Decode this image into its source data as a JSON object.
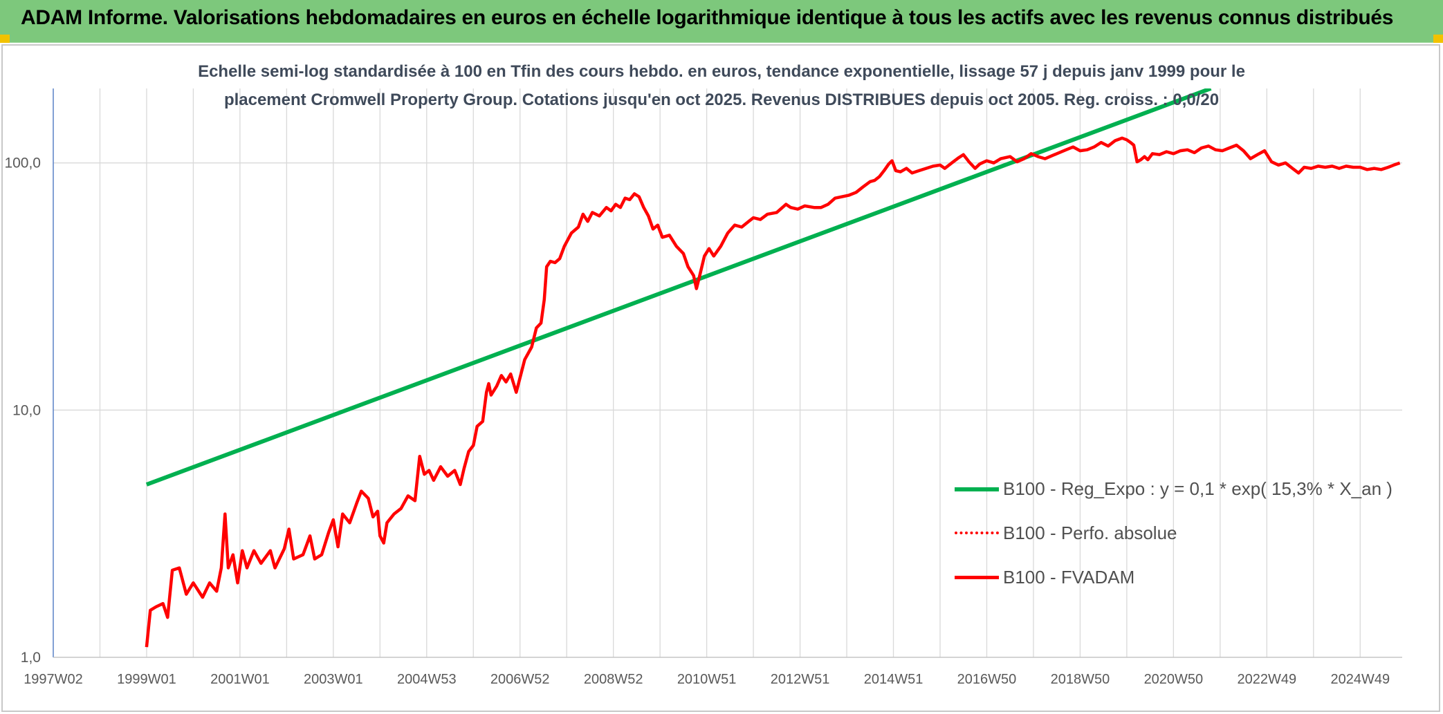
{
  "header": {
    "title": "ADAM Informe. Valorisations hebdomadaires en euros en échelle logarithmique identique à tous les actifs avec les revenus connus distribués"
  },
  "colors": {
    "header_bg": "#7dc87c",
    "regression_line": "#00b050",
    "fvadam_line": "#ff0000",
    "perfo_line": "#ff0000",
    "gridline": "#d9d9d9",
    "axis_text": "#595959",
    "corner_marker": "#f2c200"
  },
  "chart_data": {
    "type": "line",
    "title_lines": [
      "Echelle semi-log standardisée à 100 en Tfin des cours hebdo. en euros, tendance exponentielle, lissage 57 j depuis janv 1999 pour le",
      "placement Cromwell Property Group. Cotations jusqu'en oct 2025. Revenus DISTRIBUES depuis oct 2005. Reg. croiss. : 0,0/20"
    ],
    "y_scale": "log",
    "ylim": [
      1,
      200
    ],
    "y_ticks": [
      {
        "value": 1,
        "label": "1,0"
      },
      {
        "value": 10,
        "label": "10,0"
      },
      {
        "value": 100,
        "label": "100,0"
      }
    ],
    "xlim": [
      1997.0,
      2025.9
    ],
    "x_ticks": [
      {
        "value": 1997.0,
        "label": "1997W02"
      },
      {
        "value": 1999.0,
        "label": "1999W01"
      },
      {
        "value": 2001.0,
        "label": "2001W01"
      },
      {
        "value": 2003.0,
        "label": "2003W01"
      },
      {
        "value": 2005.0,
        "label": "2004W53"
      },
      {
        "value": 2007.0,
        "label": "2006W52"
      },
      {
        "value": 2009.0,
        "label": "2008W52"
      },
      {
        "value": 2011.0,
        "label": "2010W51"
      },
      {
        "value": 2013.0,
        "label": "2012W51"
      },
      {
        "value": 2015.0,
        "label": "2014W51"
      },
      {
        "value": 2017.0,
        "label": "2016W50"
      },
      {
        "value": 2019.0,
        "label": "2018W50"
      },
      {
        "value": 2021.0,
        "label": "2020W50"
      },
      {
        "value": 2023.0,
        "label": "2022W49"
      },
      {
        "value": 2025.0,
        "label": "2024W49"
      }
    ],
    "legend_position": "bottom-right",
    "series": [
      {
        "name": "B100 - Reg_Expo : y = 0,1 * exp( 15,3% *  X_an )",
        "style": "solid-thick",
        "points": [
          [
            1999.0,
            5.0
          ],
          [
            2021.8,
            200.0
          ]
        ]
      },
      {
        "name": "B100 - Perfo. absolue",
        "style": "dotted",
        "points": []
      },
      {
        "name": "B100 - FVADAM",
        "style": "solid",
        "points": [
          [
            1999.0,
            1.1
          ],
          [
            1999.08,
            1.55
          ],
          [
            1999.2,
            1.6
          ],
          [
            1999.35,
            1.65
          ],
          [
            1999.45,
            1.45
          ],
          [
            1999.55,
            2.25
          ],
          [
            1999.7,
            2.3
          ],
          [
            1999.85,
            1.8
          ],
          [
            2000.0,
            2.0
          ],
          [
            2000.2,
            1.75
          ],
          [
            2000.35,
            2.0
          ],
          [
            2000.5,
            1.85
          ],
          [
            2000.6,
            2.3
          ],
          [
            2000.68,
            3.8
          ],
          [
            2000.75,
            2.3
          ],
          [
            2000.85,
            2.6
          ],
          [
            2000.95,
            2.0
          ],
          [
            2001.05,
            2.7
          ],
          [
            2001.15,
            2.3
          ],
          [
            2001.3,
            2.7
          ],
          [
            2001.45,
            2.4
          ],
          [
            2001.65,
            2.7
          ],
          [
            2001.75,
            2.3
          ],
          [
            2001.95,
            2.75
          ],
          [
            2002.05,
            3.3
          ],
          [
            2002.15,
            2.5
          ],
          [
            2002.35,
            2.6
          ],
          [
            2002.5,
            3.1
          ],
          [
            2002.6,
            2.5
          ],
          [
            2002.75,
            2.6
          ],
          [
            2002.9,
            3.2
          ],
          [
            2003.0,
            3.6
          ],
          [
            2003.1,
            2.8
          ],
          [
            2003.2,
            3.8
          ],
          [
            2003.35,
            3.5
          ],
          [
            2003.5,
            4.2
          ],
          [
            2003.6,
            4.7
          ],
          [
            2003.75,
            4.4
          ],
          [
            2003.85,
            3.7
          ],
          [
            2003.95,
            3.9
          ],
          [
            2004.0,
            3.1
          ],
          [
            2004.08,
            2.9
          ],
          [
            2004.15,
            3.5
          ],
          [
            2004.3,
            3.8
          ],
          [
            2004.45,
            4.0
          ],
          [
            2004.6,
            4.5
          ],
          [
            2004.75,
            4.3
          ],
          [
            2004.85,
            6.5
          ],
          [
            2004.95,
            5.5
          ],
          [
            2005.05,
            5.7
          ],
          [
            2005.15,
            5.2
          ],
          [
            2005.3,
            5.9
          ],
          [
            2005.45,
            5.4
          ],
          [
            2005.6,
            5.7
          ],
          [
            2005.72,
            5.0
          ],
          [
            2005.8,
            5.8
          ],
          [
            2005.9,
            6.8
          ],
          [
            2006.0,
            7.2
          ],
          [
            2006.08,
            8.6
          ],
          [
            2006.2,
            9.0
          ],
          [
            2006.28,
            11.8
          ],
          [
            2006.33,
            12.8
          ],
          [
            2006.38,
            11.5
          ],
          [
            2006.5,
            12.5
          ],
          [
            2006.6,
            13.8
          ],
          [
            2006.7,
            13.0
          ],
          [
            2006.8,
            14.0
          ],
          [
            2006.92,
            11.8
          ],
          [
            2007.0,
            13.5
          ],
          [
            2007.1,
            16.0
          ],
          [
            2007.25,
            18.0
          ],
          [
            2007.35,
            21.5
          ],
          [
            2007.45,
            22.5
          ],
          [
            2007.52,
            28.0
          ],
          [
            2007.57,
            38.0
          ],
          [
            2007.65,
            40.0
          ],
          [
            2007.75,
            39.5
          ],
          [
            2007.85,
            41.0
          ],
          [
            2007.95,
            46.0
          ],
          [
            2008.1,
            52.0
          ],
          [
            2008.25,
            55.0
          ],
          [
            2008.35,
            62.0
          ],
          [
            2008.45,
            58.0
          ],
          [
            2008.55,
            63.0
          ],
          [
            2008.7,
            61.0
          ],
          [
            2008.85,
            66.0
          ],
          [
            2008.95,
            64.0
          ],
          [
            2009.05,
            68.0
          ],
          [
            2009.15,
            66.0
          ],
          [
            2009.25,
            72.0
          ],
          [
            2009.35,
            71.0
          ],
          [
            2009.45,
            75.0
          ],
          [
            2009.55,
            73.0
          ],
          [
            2009.65,
            66.0
          ],
          [
            2009.75,
            61.0
          ],
          [
            2009.85,
            54.0
          ],
          [
            2009.95,
            56.0
          ],
          [
            2010.05,
            50.0
          ],
          [
            2010.2,
            51.0
          ],
          [
            2010.35,
            46.0
          ],
          [
            2010.5,
            43.0
          ],
          [
            2010.6,
            38.0
          ],
          [
            2010.72,
            35.0
          ],
          [
            2010.78,
            31.0
          ],
          [
            2010.85,
            35.0
          ],
          [
            2010.95,
            42.0
          ],
          [
            2011.05,
            45.0
          ],
          [
            2011.15,
            42.0
          ],
          [
            2011.3,
            46.0
          ],
          [
            2011.45,
            52.0
          ],
          [
            2011.6,
            56.0
          ],
          [
            2011.75,
            55.0
          ],
          [
            2011.9,
            58.0
          ],
          [
            2012.0,
            60.0
          ],
          [
            2012.15,
            59.0
          ],
          [
            2012.3,
            62.0
          ],
          [
            2012.5,
            63.0
          ],
          [
            2012.7,
            68.0
          ],
          [
            2012.8,
            66.0
          ],
          [
            2012.95,
            65.0
          ],
          [
            2013.1,
            67.0
          ],
          [
            2013.3,
            66.0
          ],
          [
            2013.45,
            66.0
          ],
          [
            2013.6,
            68.0
          ],
          [
            2013.75,
            72.0
          ],
          [
            2013.9,
            73.0
          ],
          [
            2014.05,
            74.0
          ],
          [
            2014.2,
            76.0
          ],
          [
            2014.35,
            80.0
          ],
          [
            2014.5,
            84.0
          ],
          [
            2014.6,
            85.0
          ],
          [
            2014.7,
            88.0
          ],
          [
            2014.8,
            93.0
          ],
          [
            2014.9,
            99.0
          ],
          [
            2014.97,
            102.0
          ],
          [
            2015.05,
            93.0
          ],
          [
            2015.15,
            92.0
          ],
          [
            2015.28,
            95.0
          ],
          [
            2015.4,
            91.0
          ],
          [
            2015.55,
            93.0
          ],
          [
            2015.7,
            95.0
          ],
          [
            2015.85,
            97.0
          ],
          [
            2016.0,
            98.0
          ],
          [
            2016.1,
            95.0
          ],
          [
            2016.25,
            100.0
          ],
          [
            2016.4,
            105.0
          ],
          [
            2016.5,
            108.0
          ],
          [
            2016.62,
            101.0
          ],
          [
            2016.75,
            95.0
          ],
          [
            2016.85,
            99.0
          ],
          [
            2017.0,
            102.0
          ],
          [
            2017.15,
            100.0
          ],
          [
            2017.3,
            104.0
          ],
          [
            2017.5,
            106.0
          ],
          [
            2017.65,
            101.0
          ],
          [
            2017.8,
            104.0
          ],
          [
            2017.95,
            109.0
          ],
          [
            2018.1,
            106.0
          ],
          [
            2018.25,
            104.0
          ],
          [
            2018.4,
            107.0
          ],
          [
            2018.55,
            110.0
          ],
          [
            2018.7,
            113.0
          ],
          [
            2018.85,
            116.0
          ],
          [
            2019.0,
            112.0
          ],
          [
            2019.15,
            113.0
          ],
          [
            2019.3,
            116.0
          ],
          [
            2019.45,
            121.0
          ],
          [
            2019.6,
            117.0
          ],
          [
            2019.75,
            123.0
          ],
          [
            2019.9,
            126.0
          ],
          [
            2020.0,
            124.0
          ],
          [
            2020.08,
            121.0
          ],
          [
            2020.15,
            118.0
          ],
          [
            2020.22,
            101.0
          ],
          [
            2020.3,
            103.0
          ],
          [
            2020.38,
            106.0
          ],
          [
            2020.45,
            103.0
          ],
          [
            2020.55,
            109.0
          ],
          [
            2020.7,
            108.0
          ],
          [
            2020.85,
            111.0
          ],
          [
            2021.0,
            109.0
          ],
          [
            2021.15,
            112.0
          ],
          [
            2021.3,
            113.0
          ],
          [
            2021.45,
            110.0
          ],
          [
            2021.6,
            115.0
          ],
          [
            2021.75,
            117.0
          ],
          [
            2021.9,
            113.0
          ],
          [
            2022.05,
            112.0
          ],
          [
            2022.2,
            115.0
          ],
          [
            2022.35,
            118.0
          ],
          [
            2022.5,
            112.0
          ],
          [
            2022.65,
            104.0
          ],
          [
            2022.8,
            108.0
          ],
          [
            2022.95,
            112.0
          ],
          [
            2023.1,
            101.0
          ],
          [
            2023.25,
            98.0
          ],
          [
            2023.4,
            100.0
          ],
          [
            2023.55,
            95.0
          ],
          [
            2023.68,
            91.0
          ],
          [
            2023.8,
            96.0
          ],
          [
            2023.95,
            95.0
          ],
          [
            2024.1,
            97.0
          ],
          [
            2024.25,
            96.0
          ],
          [
            2024.4,
            97.0
          ],
          [
            2024.55,
            95.0
          ],
          [
            2024.7,
            97.0
          ],
          [
            2024.85,
            96.0
          ],
          [
            2025.0,
            96.0
          ],
          [
            2025.15,
            94.0
          ],
          [
            2025.3,
            95.0
          ],
          [
            2025.45,
            94.0
          ],
          [
            2025.6,
            96.0
          ],
          [
            2025.72,
            98.0
          ],
          [
            2025.85,
            100.0
          ]
        ]
      }
    ]
  }
}
